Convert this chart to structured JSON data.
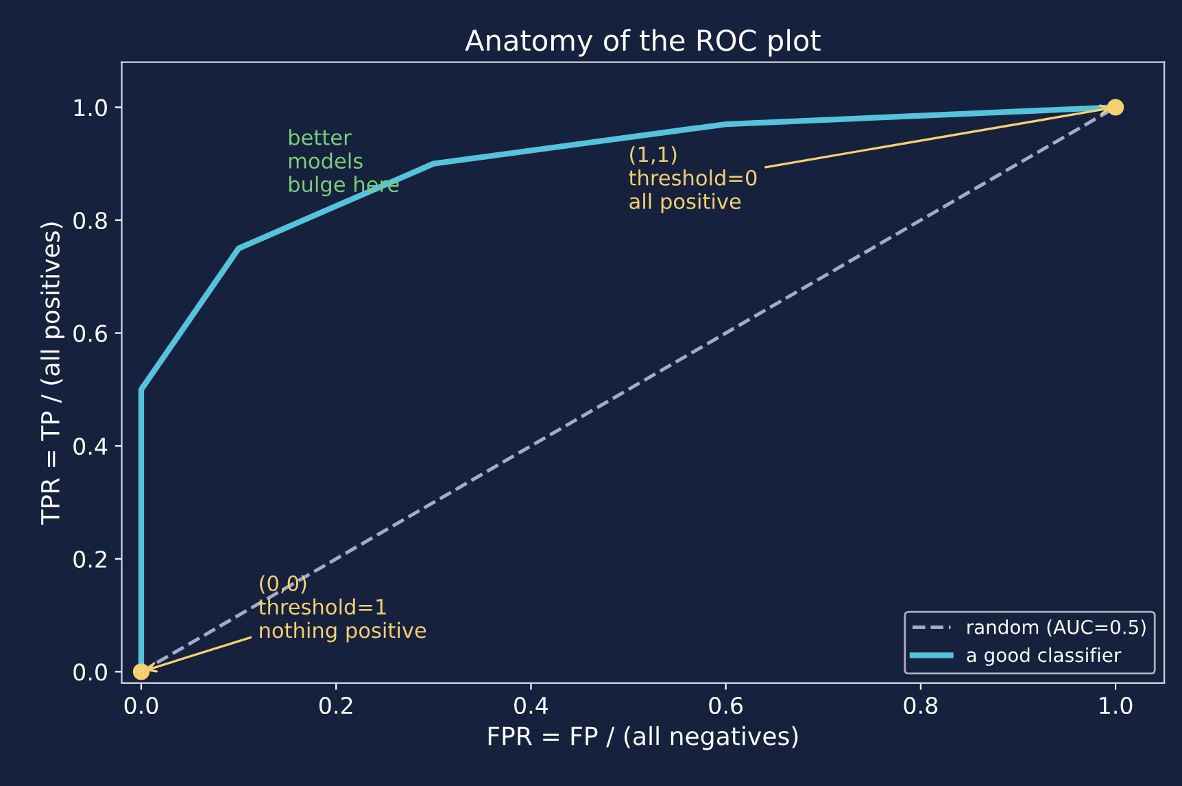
{
  "chart_data": {
    "type": "line",
    "title": "Anatomy of the ROC plot",
    "xlabel": "FPR = FP / (all negatives)",
    "ylabel": "TPR = TP / (all positives)",
    "series": [
      {
        "name": "random (AUC=0.5)",
        "color": "#a3abc9",
        "x": [
          0,
          1
        ],
        "values": [
          0,
          1
        ],
        "line_style": "dashed"
      },
      {
        "name": "a good classifier",
        "color": "#56c3dc",
        "x": [
          0,
          0,
          0.1,
          0.3,
          0.6,
          1
        ],
        "values": [
          0,
          0.5,
          0.75,
          0.9,
          0.97,
          1
        ],
        "line_style": "solid"
      },
      {
        "type": "scatter",
        "color": "#f4d06f",
        "x": [
          0,
          1
        ],
        "values": [
          0,
          1
        ],
        "marker": "circle"
      }
    ],
    "annotations": [
      {
        "text": "(0,0)\nthreshold=1\nnothing positive",
        "x": 0,
        "y": 0
      },
      {
        "text": "(1,1)\nthreshold=0\nall positive",
        "x": 1,
        "y": 1
      },
      "better\nmodels\nbulge here"
    ],
    "xlim": [
      -0.02,
      1.05
    ],
    "ylim": [
      -0.02,
      1.08
    ],
    "xticks": [
      {
        "value": 0,
        "label": "0.0"
      },
      0.2,
      0.4,
      0.6,
      0.8,
      {
        "value": 1,
        "label": "1.0"
      }
    ],
    "yticks": [
      {
        "value": 0,
        "label": "0.0"
      },
      0.2,
      0.4,
      0.6,
      0.8,
      {
        "value": 1,
        "label": "1.0"
      }
    ],
    "grid": false,
    "legend": "lower right"
  }
}
